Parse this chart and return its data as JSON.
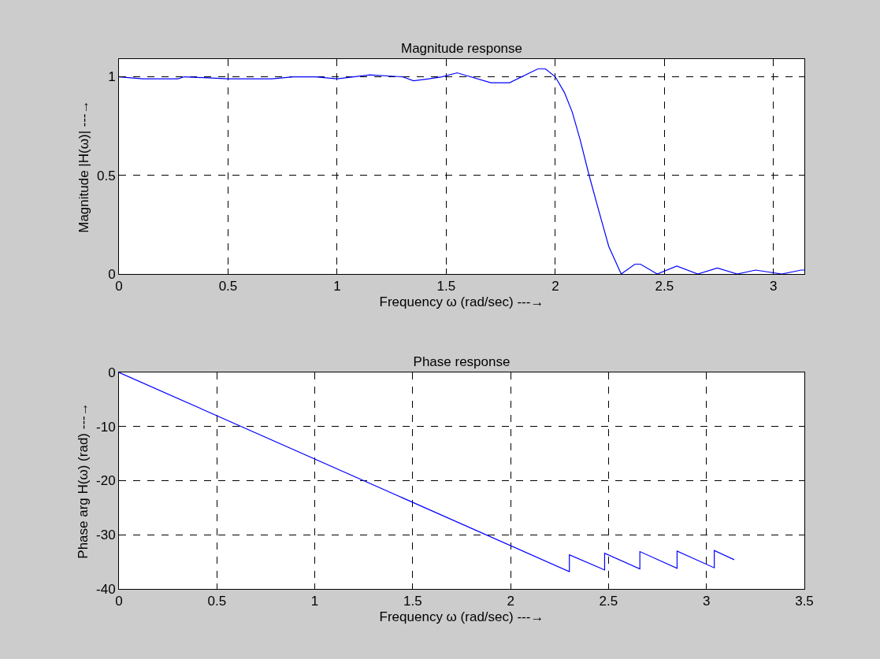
{
  "chart_data": [
    {
      "type": "line",
      "title": "Magnitude response",
      "xlabel": "Frequency ω (rad/sec) ---→",
      "ylabel": "Magnitude |H(ω)| ---→",
      "x": [
        0,
        0.11,
        0.27,
        0.3,
        0.5,
        0.7,
        0.8,
        0.9,
        1.0,
        1.15,
        1.3,
        1.35,
        1.42,
        1.48,
        1.55,
        1.705,
        1.79,
        1.92,
        1.955,
        2.0,
        2.042,
        2.078,
        2.114,
        2.155,
        2.197,
        2.245,
        2.302,
        2.365,
        2.39,
        2.467,
        2.557,
        2.653,
        2.743,
        2.834,
        2.918,
        3.038,
        3.128,
        3.1416
      ],
      "series": [
        {
          "color": "#0000ff",
          "values": [
            1.0,
            0.99,
            0.99,
            1.0,
            0.99,
            0.99,
            1.0,
            1.0,
            0.99,
            1.01,
            1.0,
            0.98,
            0.99,
            1.0,
            1.02,
            0.97,
            0.97,
            1.04,
            1.04,
            1.0,
            0.92,
            0.82,
            0.68,
            0.5,
            0.33,
            0.14,
            0.0,
            0.05,
            0.05,
            0.0,
            0.04,
            0.0,
            0.03,
            0.0,
            0.02,
            0.0,
            0.02,
            0.02
          ]
        }
      ],
      "xlim": [
        0,
        3.1416
      ],
      "xticks": [
        0,
        0.5,
        1,
        1.5,
        2,
        2.5,
        3
      ],
      "ylim": [
        0,
        1.09
      ],
      "yticks": [
        0,
        0.5,
        1
      ],
      "grid": true,
      "line_style": "solid"
    },
    {
      "type": "line",
      "title": "Phase response",
      "xlabel": "Frequency ω (rad/sec) ---→",
      "ylabel": "Phase arg H(ω) (rad) ---→",
      "x": [
        0,
        2.3,
        2.3,
        2.48,
        2.48,
        2.66,
        2.66,
        2.85,
        2.85,
        3.04,
        3.04,
        3.1416
      ],
      "series": [
        {
          "color": "#0000ff",
          "values": [
            0,
            -36.8,
            -33.7,
            -36.5,
            -33.4,
            -36.3,
            -33.1,
            -36.2,
            -33.0,
            -36.1,
            -32.9,
            -34.6
          ]
        }
      ],
      "xlim": [
        0,
        3.5
      ],
      "xticks": [
        0,
        0.5,
        1,
        1.5,
        2,
        2.5,
        3,
        3.5
      ],
      "ylim": [
        -40,
        0
      ],
      "yticks": [
        -40,
        -30,
        -20,
        -10,
        0
      ],
      "grid": true,
      "line_style": "solid"
    }
  ]
}
